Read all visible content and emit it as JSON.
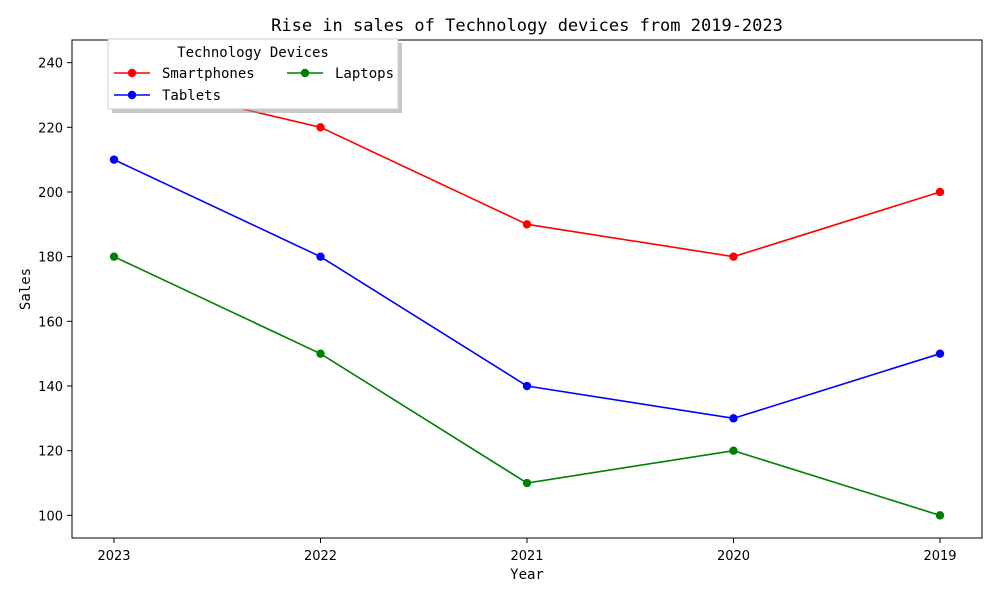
{
  "chart_data": {
    "type": "line",
    "title": "Rise in sales of Technology devices from 2019-2023",
    "xlabel": "Year",
    "ylabel": "Sales",
    "categories": [
      "2023",
      "2022",
      "2021",
      "2020",
      "2019"
    ],
    "ylim": [
      93,
      247
    ],
    "yticks": [
      100,
      120,
      140,
      160,
      180,
      200,
      220,
      240
    ],
    "grid": false,
    "legend": {
      "title": "Technology Devices",
      "placement": "top-left",
      "columns": 2
    },
    "series": [
      {
        "name": "Smartphones",
        "color": "#ff0000",
        "values": [
          235,
          220,
          190,
          180,
          200
        ]
      },
      {
        "name": "Tablets",
        "color": "#0000ff",
        "values": [
          210,
          180,
          140,
          130,
          150
        ]
      },
      {
        "name": "Laptops",
        "color": "#008000",
        "values": [
          180,
          150,
          110,
          120,
          100
        ]
      }
    ]
  }
}
